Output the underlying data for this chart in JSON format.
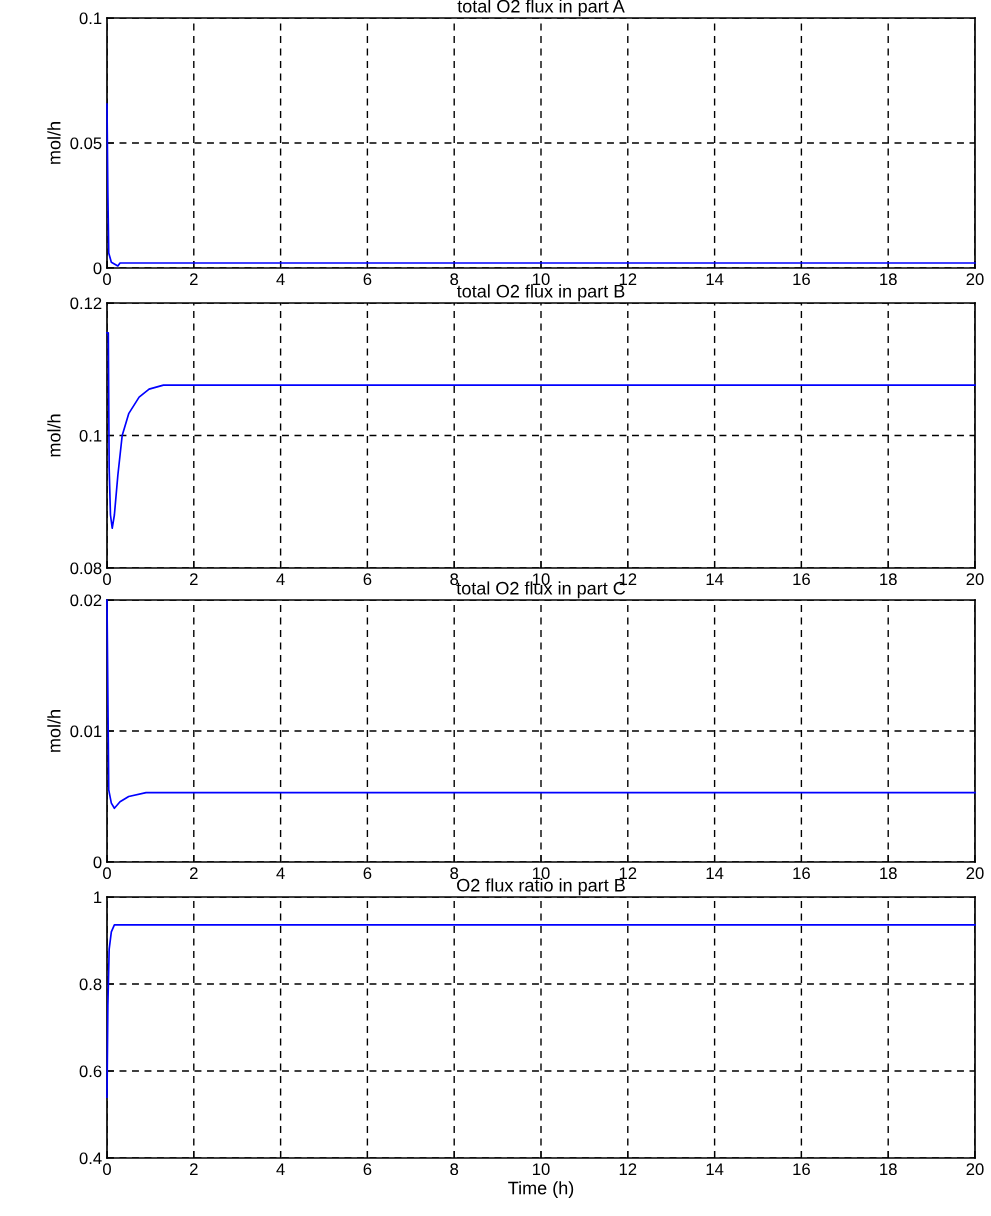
{
  "chart_data": [
    {
      "type": "line",
      "title": "total O2 flux in part A",
      "ylabel": "mol/h",
      "xlim": [
        0,
        20
      ],
      "xticks": [
        0,
        2,
        4,
        6,
        8,
        10,
        12,
        14,
        16,
        18,
        20
      ],
      "ylim": [
        0,
        0.1
      ],
      "yticks": [
        0,
        0.05,
        0.1
      ],
      "grid": true,
      "series": [
        {
          "color": "#0000ff",
          "x": [
            0,
            0.02,
            0.04,
            0.1,
            0.25,
            0.3,
            20
          ],
          "values": [
            0.0656,
            0.03,
            0.006,
            0.0023,
            0.0008,
            0.002,
            0.002
          ]
        }
      ]
    },
    {
      "type": "line",
      "title": "total O2 flux in part B",
      "ylabel": "mol/h",
      "xlim": [
        0,
        20
      ],
      "xticks": [
        0,
        2,
        4,
        6,
        8,
        10,
        12,
        14,
        16,
        18,
        20
      ],
      "ylim": [
        0.08,
        0.12
      ],
      "yticks": [
        0.08,
        0.1,
        0.12
      ],
      "grid": true,
      "series": [
        {
          "color": "#0000ff",
          "x": [
            0,
            0.03,
            0.05,
            0.08,
            0.12,
            0.17,
            0.25,
            0.35,
            0.5,
            0.74,
            0.97,
            1.3,
            20
          ],
          "values": [
            0.1155,
            0.1155,
            0.095,
            0.088,
            0.086,
            0.088,
            0.094,
            0.1,
            0.1033,
            0.1058,
            0.107,
            0.1076,
            0.1076
          ]
        }
      ]
    },
    {
      "type": "line",
      "title": "total O2 flux in part C",
      "ylabel": "mol/h",
      "xlim": [
        0,
        20
      ],
      "xticks": [
        0,
        2,
        4,
        6,
        8,
        10,
        12,
        14,
        16,
        18,
        20
      ],
      "ylim": [
        0,
        0.02
      ],
      "yticks": [
        0,
        0.01,
        0.02
      ],
      "grid": true,
      "series": [
        {
          "color": "#0000ff",
          "x": [
            0,
            0.04,
            0.1,
            0.17,
            0.3,
            0.5,
            0.9,
            20
          ],
          "values": [
            0.02,
            0.0055,
            0.0045,
            0.0041,
            0.0046,
            0.005,
            0.0053,
            0.0053
          ]
        }
      ]
    },
    {
      "type": "line",
      "title": "O2 flux ratio in part B",
      "xlabel": "Time (h)",
      "xlim": [
        0,
        20
      ],
      "xticks": [
        0,
        2,
        4,
        6,
        8,
        10,
        12,
        14,
        16,
        18,
        20
      ],
      "ylim": [
        0.4,
        1
      ],
      "yticks": [
        0.4,
        0.6,
        0.8,
        1
      ],
      "grid": true,
      "series": [
        {
          "color": "#0000ff",
          "x": [
            0,
            0.02,
            0.05,
            0.1,
            0.17,
            20
          ],
          "values": [
            0.54,
            0.75,
            0.88,
            0.92,
            0.936,
            0.936
          ]
        }
      ]
    }
  ]
}
